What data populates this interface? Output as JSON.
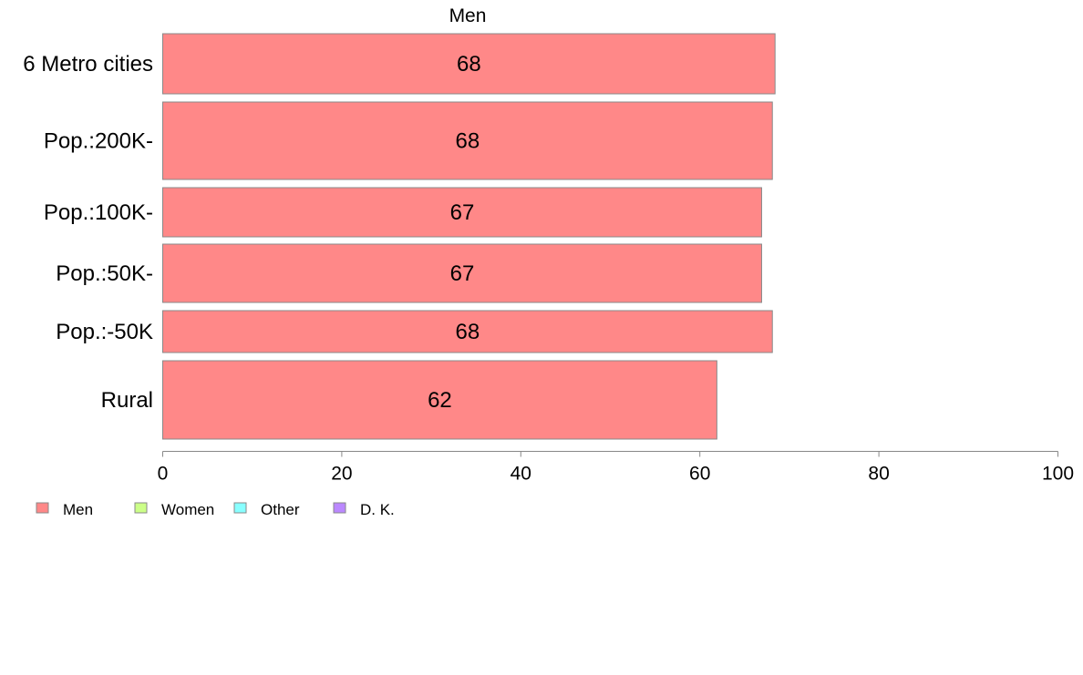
{
  "chart_data": {
    "type": "bar",
    "orientation": "horizontal",
    "title": "Men",
    "categories": [
      "6 Metro cities",
      "Pop.:200K-",
      "Pop.:100K-",
      "Pop.:50K-",
      "Pop.:-50K",
      "Rural"
    ],
    "series": [
      {
        "name": "Men",
        "values": [
          68.4,
          68.1,
          66.9,
          66.9,
          68.1,
          61.9
        ]
      }
    ],
    "data_labels": [
      "68",
      "68",
      "67",
      "67",
      "68",
      "62"
    ],
    "xlim": [
      0,
      100
    ],
    "x_ticks": [
      0,
      20,
      40,
      60,
      80,
      100
    ],
    "x_tick_labels": [
      "0",
      "20",
      "40",
      "60",
      "80",
      "100"
    ],
    "xlabel": "",
    "ylabel": "",
    "grid": false,
    "legend_position": "bottom-left",
    "legend": [
      {
        "label": "Men",
        "color": "#ff8888"
      },
      {
        "label": "Women",
        "color": "#ccff88"
      },
      {
        "label": "Other",
        "color": "#88ffff"
      },
      {
        "label": "D. K.",
        "color": "#bb88ff"
      }
    ],
    "bar_color": "#ff8888",
    "bar_border_color": "#888888",
    "axis_color": "#888888"
  }
}
